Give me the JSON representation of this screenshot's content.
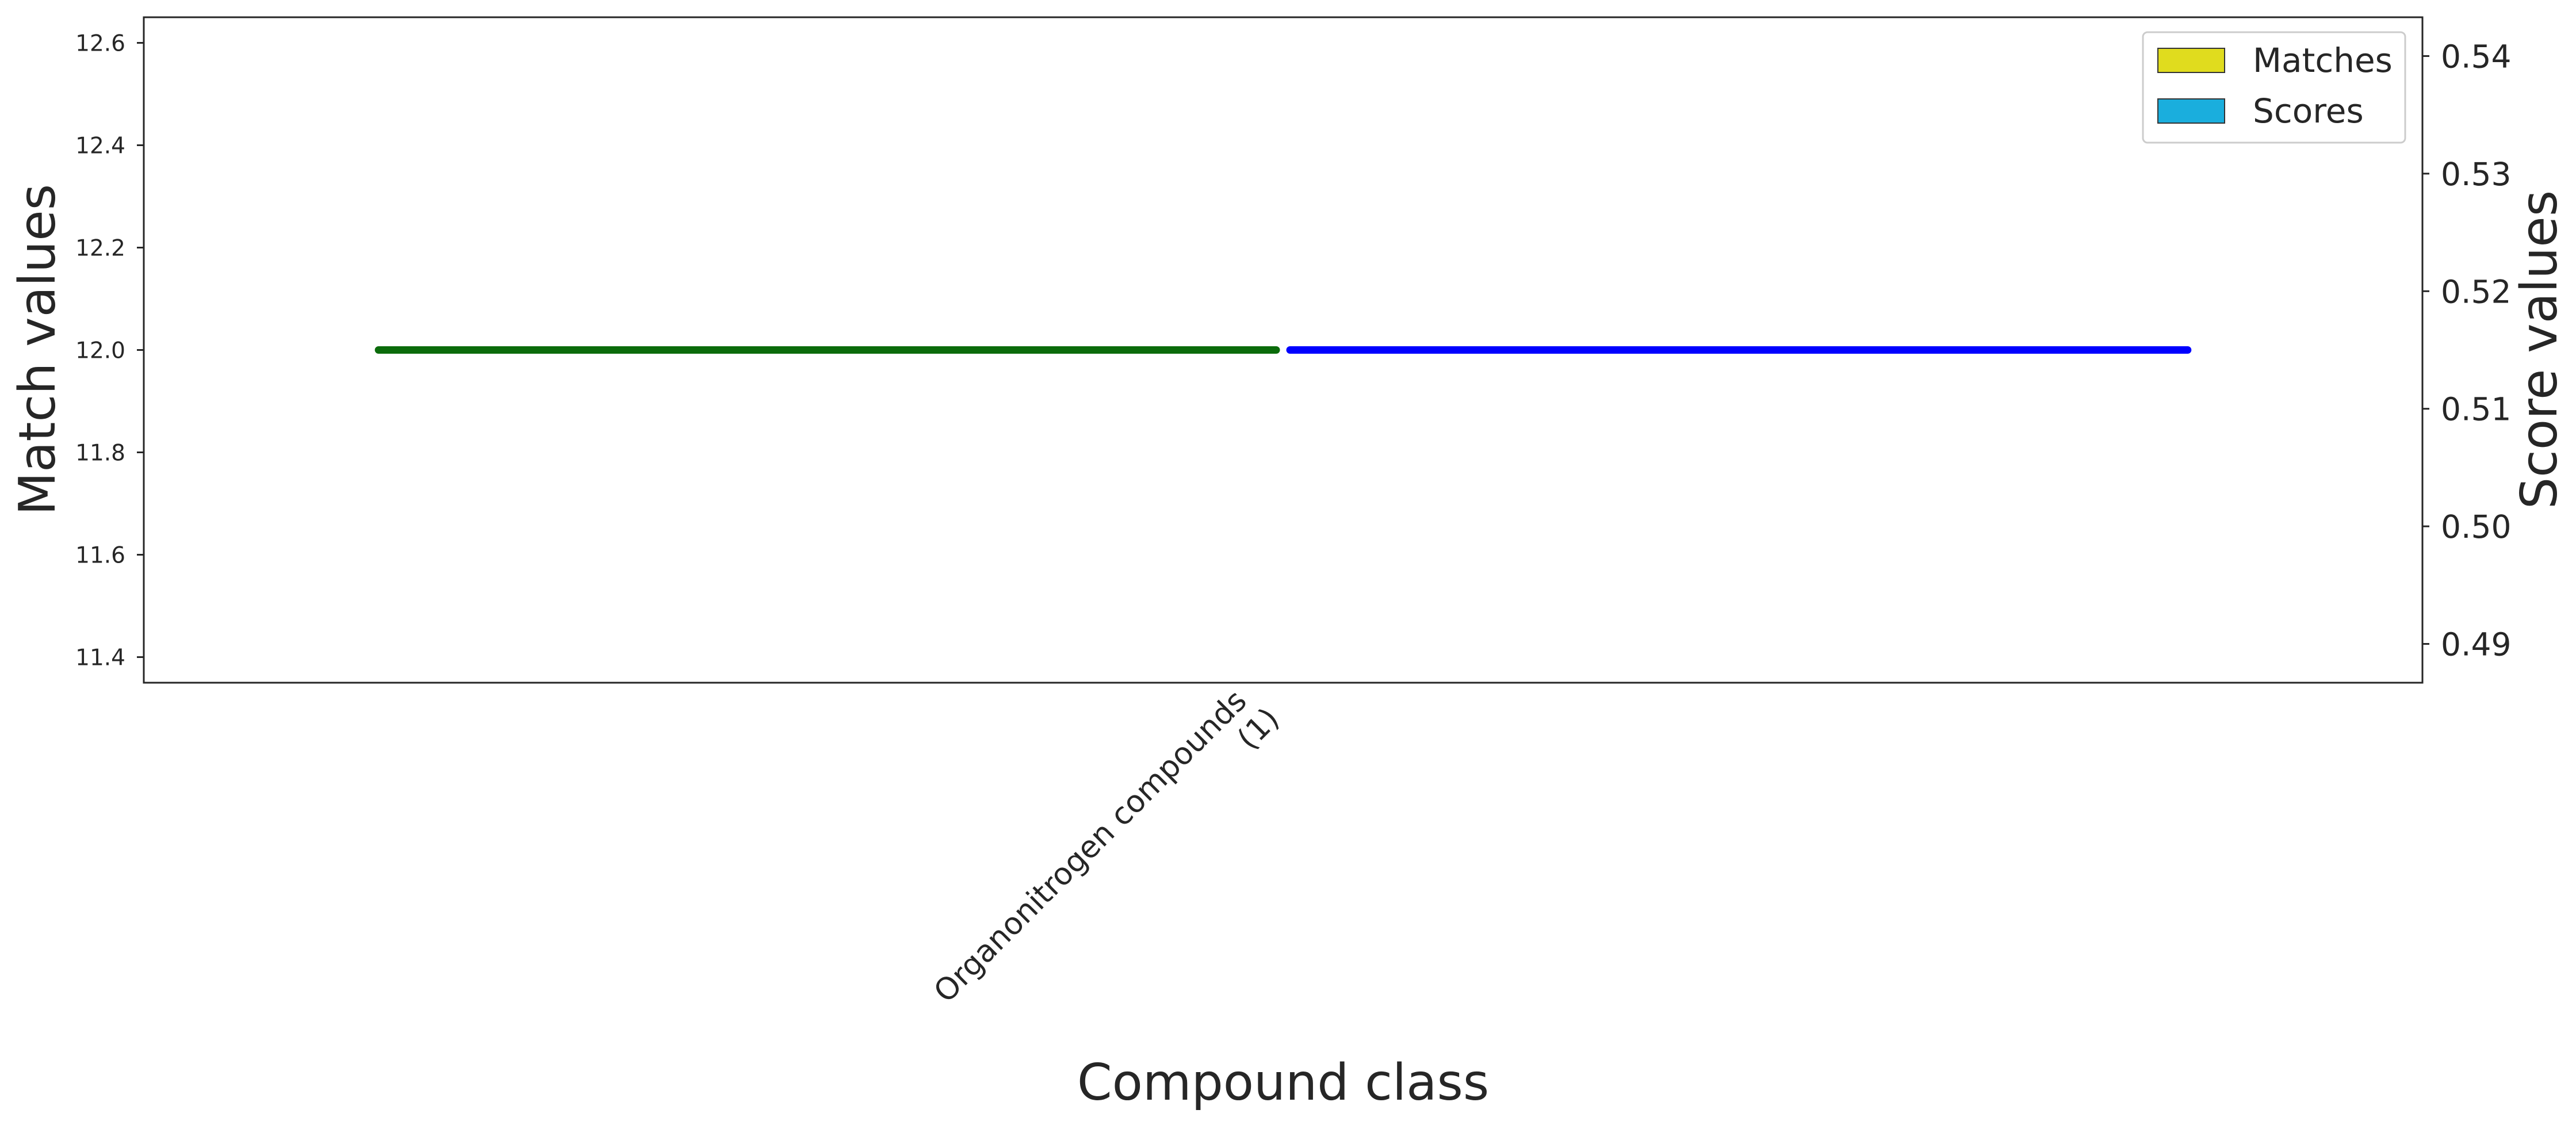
{
  "chart_data": {
    "type": "bar",
    "xlabel": "Compound class",
    "ylabel_left": "Match values",
    "ylabel_right": "Score values",
    "categories": [
      "Organonitrogen compounds\n(1)"
    ],
    "left_axis": {
      "ylim": [
        11.35,
        12.65
      ],
      "ticks": [
        "11.4",
        "11.6",
        "11.8",
        "12.0",
        "12.2",
        "12.4",
        "12.6"
      ]
    },
    "right_axis": {
      "ylim": [
        0.4867,
        0.5433
      ],
      "ticks": [
        "0.49",
        "0.50",
        "0.51",
        "0.52",
        "0.53",
        "0.54"
      ]
    },
    "series": [
      {
        "name": "Matches",
        "axis": "left",
        "values": [
          12
        ],
        "legend_color": "#e0dc1e",
        "bar_color": "#0b6b0b"
      },
      {
        "name": "Scores",
        "axis": "right",
        "values": [
          0.515
        ],
        "legend_color": "#1aaedd",
        "bar_color": "#0000ff"
      }
    ],
    "legend_position": "top-right",
    "grid": false
  }
}
